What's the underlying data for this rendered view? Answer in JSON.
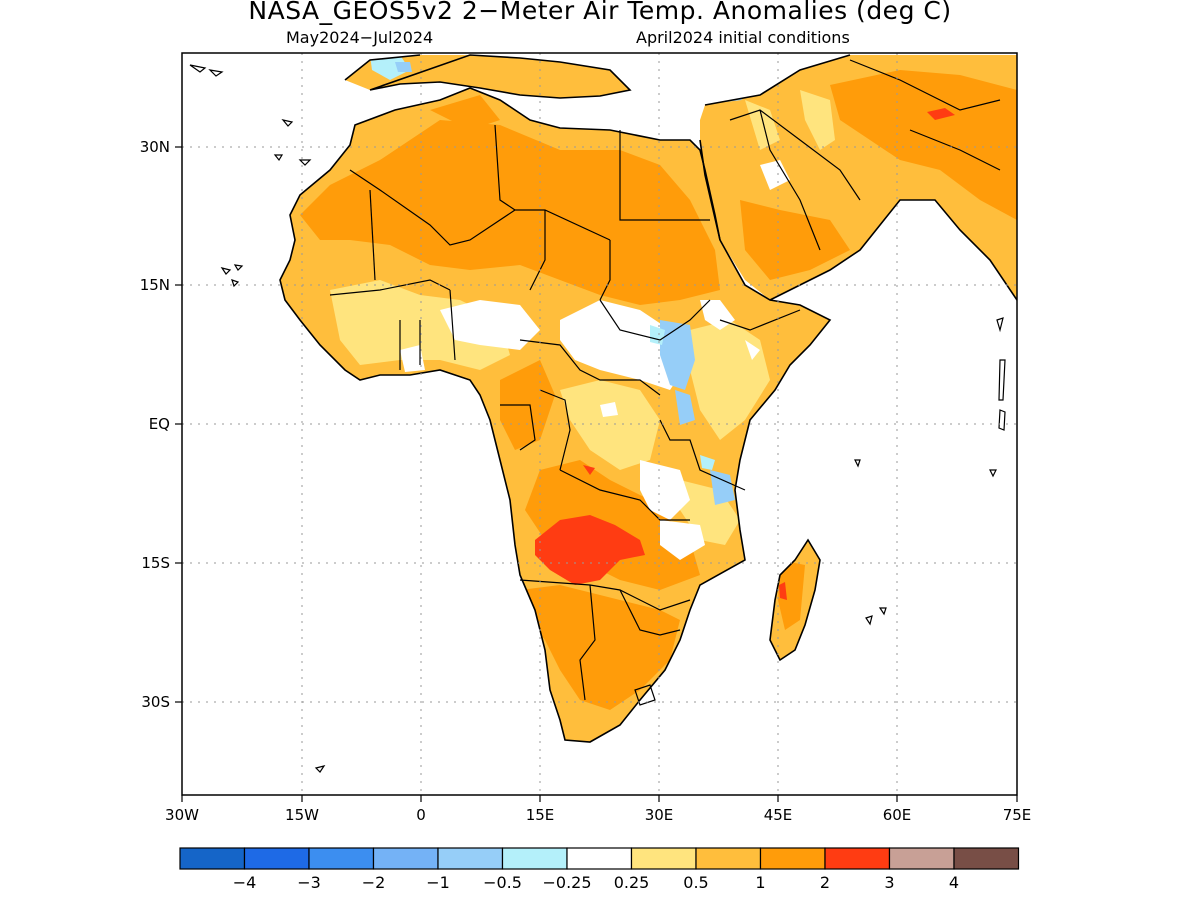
{
  "title": "NASA_GEOS5v2 2−Meter Air Temp. Anomalies (deg C)",
  "subtitle_left": "May2024−Jul2024",
  "subtitle_right": "April2024 initial conditions",
  "x_ticks": [
    "30W",
    "15W",
    "0",
    "15E",
    "30E",
    "45E",
    "60E",
    "75E"
  ],
  "y_ticks": [
    "30N",
    "15N",
    "EQ",
    "15S",
    "30S"
  ],
  "colorbar": {
    "colors": [
      "#1565c8",
      "#1e6ae6",
      "#3c8ef0",
      "#74b2f6",
      "#96cef8",
      "#b4f0fa",
      "#ffffff",
      "#ffe47e",
      "#ffbe3c",
      "#ff9c0a",
      "#ff3c12",
      "#c8a096",
      "#784e46"
    ],
    "labels": [
      "−4",
      "−3",
      "−2",
      "−1",
      "−0.5",
      "−0.25",
      "0.25",
      "0.5",
      "1",
      "2",
      "3",
      "4"
    ]
  }
}
